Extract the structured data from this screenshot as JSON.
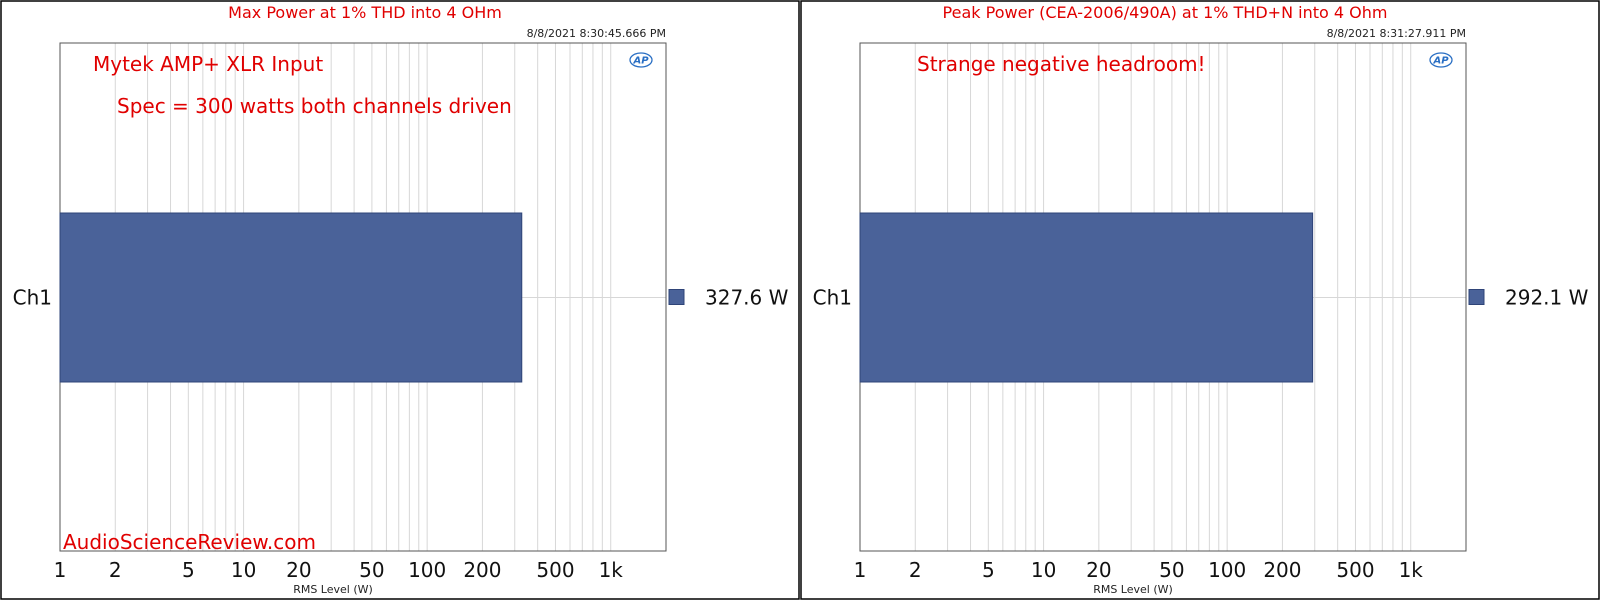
{
  "chart_data": [
    {
      "type": "bar",
      "orientation": "horizontal",
      "title": "Max Power at 1% THD into 4 OHm",
      "timestamp": "8/8/2021 8:30:45.666 PM",
      "annotations": [
        "Mytek AMP+ XLR Input",
        "Spec = 300 watts both channels driven"
      ],
      "watermark": "AudioScienceReview.com",
      "categories": [
        "Ch1"
      ],
      "series": [
        {
          "values": [
            327.6
          ]
        }
      ],
      "value_label": "327.6  W",
      "xlabel": "RMS Level (W)",
      "xscale": "log",
      "xlim": [
        1,
        2000
      ],
      "xticks": [
        1,
        2,
        5,
        10,
        20,
        50,
        100,
        200,
        500,
        1000
      ],
      "xtick_labels": [
        "1",
        "2",
        "5",
        "10",
        "20",
        "50",
        "100",
        "200",
        "500",
        "1k"
      ],
      "grid": true,
      "legend": "right",
      "color": "#4a6299",
      "logo": "AP"
    },
    {
      "type": "bar",
      "orientation": "horizontal",
      "title": "Peak Power (CEA-2006/490A) at 1% THD+N into 4 Ohm",
      "timestamp": "8/8/2021 8:31:27.911 PM",
      "annotations": [
        "Strange negative headroom!"
      ],
      "watermark": "",
      "categories": [
        "Ch1"
      ],
      "series": [
        {
          "values": [
            292.1
          ]
        }
      ],
      "value_label": "292.1  W",
      "xlabel": "RMS Level (W)",
      "xscale": "log",
      "xlim": [
        1,
        2000
      ],
      "xticks": [
        1,
        2,
        5,
        10,
        20,
        50,
        100,
        200,
        500,
        1000
      ],
      "xtick_labels": [
        "1",
        "2",
        "5",
        "10",
        "20",
        "50",
        "100",
        "200",
        "500",
        "1k"
      ],
      "grid": true,
      "legend": "right",
      "color": "#4a6299",
      "logo": "AP"
    }
  ]
}
